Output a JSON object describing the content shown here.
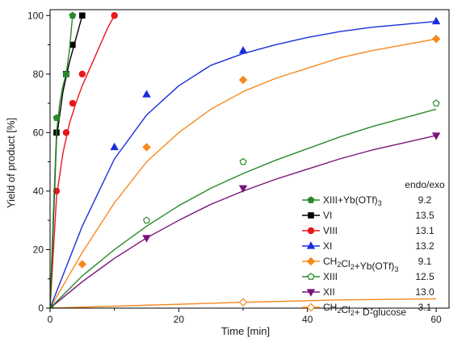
{
  "chart_data": {
    "type": "scatter",
    "xlabel": "Time [min]",
    "ylabel": "Yield of product [%]",
    "xlim": [
      0,
      62
    ],
    "ylim": [
      0,
      102
    ],
    "xticks": [
      0,
      20,
      40,
      60
    ],
    "yticks": [
      0,
      20,
      40,
      60,
      80,
      100
    ],
    "grid": false,
    "legend_position": "right",
    "legend_ratio_header": "endo/exo",
    "series": [
      {
        "label_main": "XIII+Yb(OTf)",
        "label_sub": "3",
        "label_tail": "",
        "endo_exo": "9.2",
        "color": "#2a8a2a",
        "marker": "pentagon-filled",
        "points": [
          [
            0,
            0
          ],
          [
            1,
            65
          ],
          [
            2.5,
            80
          ],
          [
            3.5,
            100
          ]
        ],
        "fit": [
          [
            0,
            0
          ],
          [
            0.5,
            32
          ],
          [
            1,
            60
          ],
          [
            1.5,
            70
          ],
          [
            2,
            76
          ],
          [
            2.5,
            80
          ],
          [
            3,
            88
          ],
          [
            3.5,
            100
          ]
        ]
      },
      {
        "label_main": "VI",
        "label_sub": "",
        "label_tail": "",
        "endo_exo": "13.5",
        "color": "#000000",
        "marker": "square-filled",
        "points": [
          [
            0,
            0
          ],
          [
            1,
            60
          ],
          [
            2.5,
            80
          ],
          [
            3.5,
            90
          ],
          [
            5,
            100
          ]
        ],
        "fit": [
          [
            0,
            0
          ],
          [
            1,
            58
          ],
          [
            2,
            74
          ],
          [
            3,
            84
          ],
          [
            4,
            92
          ],
          [
            5,
            100
          ]
        ]
      },
      {
        "label_main": "VIII",
        "label_sub": "",
        "label_tail": "",
        "endo_exo": "13.1",
        "color": "#e8161d",
        "marker": "circle-filled",
        "points": [
          [
            0,
            0
          ],
          [
            1,
            40
          ],
          [
            2.5,
            60
          ],
          [
            3.5,
            70
          ],
          [
            5,
            80
          ],
          [
            10,
            100
          ]
        ],
        "fit": [
          [
            0,
            0
          ],
          [
            1,
            38
          ],
          [
            2,
            53
          ],
          [
            3,
            63
          ],
          [
            4,
            70
          ],
          [
            5,
            76
          ],
          [
            6,
            81
          ],
          [
            7,
            86
          ],
          [
            8,
            91
          ],
          [
            9,
            96
          ],
          [
            10,
            100
          ]
        ]
      },
      {
        "label_main": "XI",
        "label_sub": "",
        "label_tail": "",
        "endo_exo": "13.2",
        "color": "#1a2edb",
        "marker": "triangle-up-filled",
        "points": [
          [
            10,
            55
          ],
          [
            15,
            73
          ],
          [
            30,
            88
          ],
          [
            60,
            98
          ]
        ],
        "fit": [
          [
            0,
            0
          ],
          [
            5,
            28
          ],
          [
            10,
            51
          ],
          [
            15,
            66
          ],
          [
            20,
            76
          ],
          [
            25,
            83
          ],
          [
            30,
            87
          ],
          [
            35,
            90
          ],
          [
            40,
            92.5
          ],
          [
            45,
            94.5
          ],
          [
            50,
            96
          ],
          [
            55,
            97
          ],
          [
            60,
            98
          ]
        ]
      },
      {
        "label_main": "CH",
        "label_sub": "2",
        "label_tail": "Cl",
        "label_sub2": "2",
        "label_tail2": "+Yb(OTf)",
        "label_sub3": "3",
        "endo_exo": "9.1",
        "color": "#f7881f",
        "marker": "diamond-filled",
        "points": [
          [
            5,
            15
          ],
          [
            15,
            55
          ],
          [
            30,
            78
          ],
          [
            60,
            92
          ]
        ],
        "fit": [
          [
            0,
            0
          ],
          [
            5,
            19
          ],
          [
            10,
            36
          ],
          [
            15,
            50
          ],
          [
            20,
            60
          ],
          [
            25,
            68
          ],
          [
            30,
            74
          ],
          [
            35,
            78.5
          ],
          [
            40,
            82
          ],
          [
            45,
            85.5
          ],
          [
            50,
            88
          ],
          [
            55,
            90
          ],
          [
            60,
            92
          ]
        ]
      },
      {
        "label_main": "XIII",
        "label_sub": "",
        "label_tail": "",
        "endo_exo": "12.5",
        "color": "#2a8a2a",
        "marker": "pentagon-open",
        "points": [
          [
            15,
            30
          ],
          [
            30,
            50
          ],
          [
            60,
            70
          ]
        ],
        "fit": [
          [
            0,
            0
          ],
          [
            5,
            11
          ],
          [
            10,
            20
          ],
          [
            15,
            28
          ],
          [
            20,
            35
          ],
          [
            25,
            41
          ],
          [
            30,
            46
          ],
          [
            35,
            50.5
          ],
          [
            40,
            54.5
          ],
          [
            45,
            58.5
          ],
          [
            50,
            62
          ],
          [
            55,
            65
          ],
          [
            60,
            68
          ]
        ]
      },
      {
        "label_main": "XII",
        "label_sub": "",
        "label_tail": "",
        "endo_exo": "13.0",
        "color": "#7a127a",
        "marker": "triangle-down-filled",
        "points": [
          [
            15,
            24
          ],
          [
            30,
            41
          ],
          [
            60,
            59
          ]
        ],
        "fit": [
          [
            0,
            0
          ],
          [
            5,
            9
          ],
          [
            10,
            17
          ],
          [
            15,
            24
          ],
          [
            20,
            30
          ],
          [
            25,
            35.5
          ],
          [
            30,
            40
          ],
          [
            35,
            44
          ],
          [
            40,
            47.5
          ],
          [
            45,
            51
          ],
          [
            50,
            54
          ],
          [
            55,
            56.5
          ],
          [
            60,
            59
          ]
        ]
      },
      {
        "label_main": "CH",
        "label_sub": "2",
        "label_tail": "Cl",
        "label_sub2": "2",
        "label_tail2": "+ D-glucose",
        "label_sub3": "",
        "endo_exo": "3.1",
        "color": "#f7881f",
        "marker": "diamond-open",
        "points": [
          [
            30,
            2
          ]
        ],
        "fit": [
          [
            0,
            0
          ],
          [
            15,
            1
          ],
          [
            30,
            2
          ],
          [
            45,
            2.8
          ],
          [
            60,
            3.2
          ]
        ]
      }
    ]
  }
}
